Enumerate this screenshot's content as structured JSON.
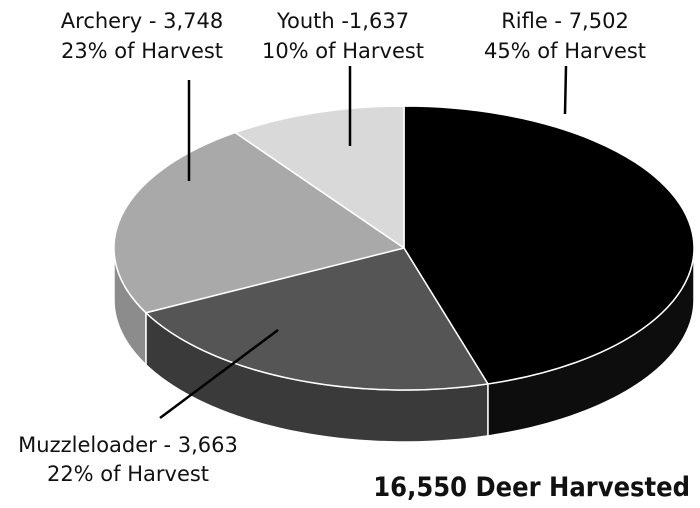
{
  "chart_data": {
    "type": "pie",
    "style": "3d",
    "title": "",
    "total_label": "16,550 Deer Harvested",
    "slices": [
      {
        "name": "Rifle",
        "value": 7502,
        "percent": 45,
        "color": "#000000",
        "side_color": "#0d0d0d",
        "label_line1": "Rifle - 7,502",
        "label_line2": "45% of Harvest"
      },
      {
        "name": "Muzzleloader",
        "value": 3663,
        "percent": 22,
        "color": "#555555",
        "side_color": "#3a3a3a",
        "label_line1": "Muzzleloader - 3,663",
        "label_line2": "22% of Harvest"
      },
      {
        "name": "Archery",
        "value": 3748,
        "percent": 23,
        "color": "#a9a9a9",
        "side_color": "#8c8c8c",
        "label_line1": "Archery - 3,748",
        "label_line2": "23% of Harvest"
      },
      {
        "name": "Youth",
        "value": 1637,
        "percent": 10,
        "color": "#d9d9d9",
        "side_color": "#c0c0c0",
        "label_line1": "Youth -1,637",
        "label_line2": "10% of Harvest"
      }
    ]
  }
}
